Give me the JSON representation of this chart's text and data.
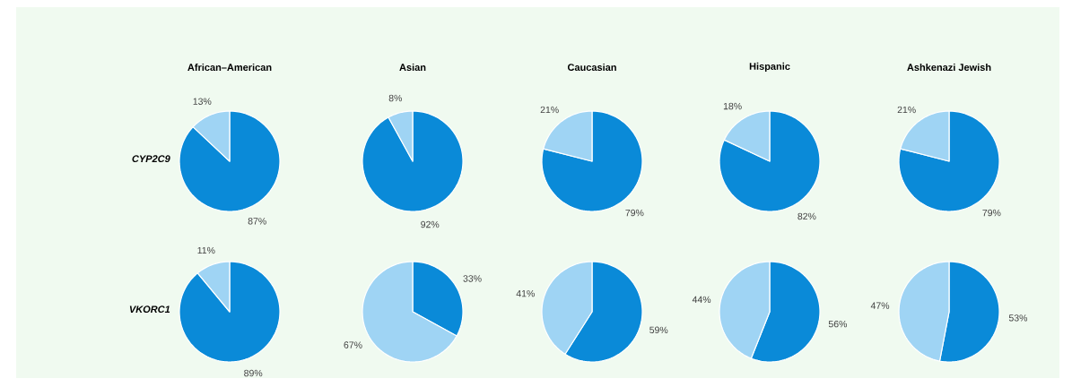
{
  "chart_data": [
    {
      "type": "pie",
      "title": "African–American",
      "ylabel": "CYP2C9",
      "categories": [
        null,
        null
      ],
      "values": [
        87,
        13
      ],
      "colors": [
        "#0a8ad8",
        "#9fd4f4"
      ],
      "value_labels": [
        "87%",
        "13%"
      ]
    },
    {
      "type": "pie",
      "title": "Asian",
      "categories": [
        null,
        null
      ],
      "values": [
        92,
        8
      ],
      "colors": [
        "#0a8ad8",
        "#9fd4f4"
      ],
      "value_labels": [
        "92%",
        "8%"
      ]
    },
    {
      "type": "pie",
      "title": "Caucasian",
      "categories": [
        null,
        null
      ],
      "values": [
        79,
        21
      ],
      "colors": [
        "#0a8ad8",
        "#9fd4f4"
      ],
      "value_labels": [
        "79%",
        "21%"
      ]
    },
    {
      "type": "pie",
      "title": "Hispanic",
      "categories": [
        null,
        null
      ],
      "values": [
        82,
        18
      ],
      "colors": [
        "#0a8ad8",
        "#9fd4f4"
      ],
      "value_labels": [
        "82%",
        "18%"
      ]
    },
    {
      "type": "pie",
      "title": "Ashkenazi Jewish",
      "categories": [
        null,
        null
      ],
      "values": [
        79,
        21
      ],
      "colors": [
        "#0a8ad8",
        "#9fd4f4"
      ],
      "value_labels": [
        "79%",
        "21%"
      ]
    },
    {
      "type": "pie",
      "ylabel": "VKORC1",
      "categories": [
        null,
        null
      ],
      "values": [
        89,
        11
      ],
      "colors": [
        "#0a8ad8",
        "#9fd4f4"
      ],
      "value_labels": [
        "89%",
        "11%"
      ]
    },
    {
      "type": "pie",
      "categories": [
        null,
        null
      ],
      "values": [
        33,
        67
      ],
      "colors": [
        "#0a8ad8",
        "#9fd4f4"
      ],
      "value_labels": [
        "33%",
        "67%"
      ]
    },
    {
      "type": "pie",
      "categories": [
        null,
        null
      ],
      "values": [
        59,
        41
      ],
      "colors": [
        "#0a8ad8",
        "#9fd4f4"
      ],
      "value_labels": [
        "59%",
        "41%"
      ]
    },
    {
      "type": "pie",
      "categories": [
        null,
        null
      ],
      "values": [
        56,
        44
      ],
      "colors": [
        "#0a8ad8",
        "#9fd4f4"
      ],
      "value_labels": [
        "56%",
        "44%"
      ]
    },
    {
      "type": "pie",
      "categories": [
        null,
        null
      ],
      "values": [
        53,
        47
      ],
      "colors": [
        "#0a8ad8",
        "#9fd4f4"
      ],
      "value_labels": [
        "53%",
        "47%"
      ]
    }
  ]
}
